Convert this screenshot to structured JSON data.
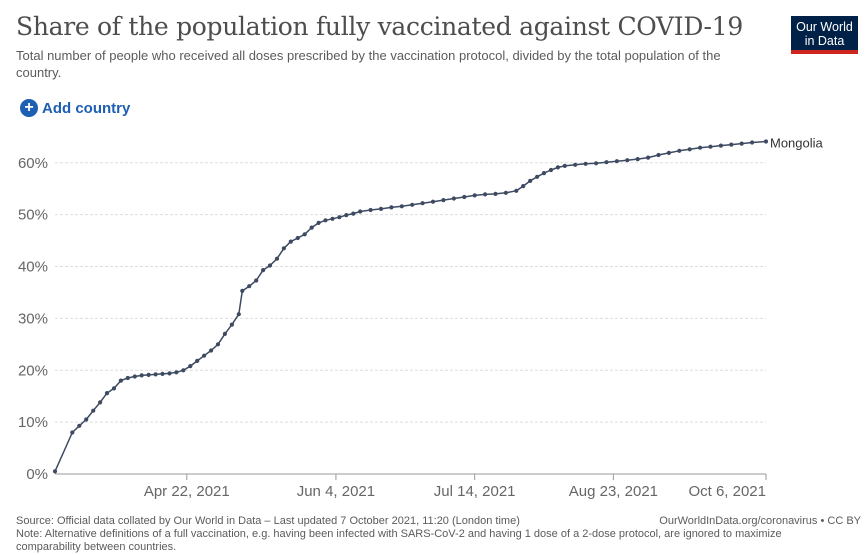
{
  "header": {
    "title": "Share of the population fully vaccinated against COVID-19",
    "subtitle": "Total number of people who received all doses prescribed by the vaccination protocol, divided by the total population of the country."
  },
  "logo": {
    "line1": "Our World",
    "line2": "in Data"
  },
  "controls": {
    "add_country": "Add country"
  },
  "colors": {
    "series": "#3d4a61",
    "grid": "#dddddd",
    "link": "#1d5fb3",
    "logo_bg": "#002147",
    "logo_accent": "#ce261e"
  },
  "chart_data": {
    "type": "line",
    "xlabel": "",
    "ylabel": "",
    "ylim": [
      0,
      64
    ],
    "y_ticks": [
      0,
      10,
      20,
      30,
      40,
      50,
      60
    ],
    "y_tick_labels": [
      "0%",
      "10%",
      "20%",
      "30%",
      "40%",
      "50%",
      "60%"
    ],
    "x_range": [
      "2021-03-15",
      "2021-10-06"
    ],
    "x_ticks": [
      "2021-04-22",
      "2021-06-04",
      "2021-07-14",
      "2021-08-23",
      "2021-10-06"
    ],
    "x_tick_labels": [
      "Apr 22, 2021",
      "Jun 4, 2021",
      "Jul 14, 2021",
      "Aug 23, 2021",
      "Oct 6, 2021"
    ],
    "grid": true,
    "series": [
      {
        "name": "Mongolia",
        "points": [
          [
            "2021-03-15",
            0.5
          ],
          [
            "2021-03-20",
            8.0
          ],
          [
            "2021-03-22",
            9.3
          ],
          [
            "2021-03-24",
            10.5
          ],
          [
            "2021-03-26",
            12.2
          ],
          [
            "2021-03-28",
            13.8
          ],
          [
            "2021-03-30",
            15.6
          ],
          [
            "2021-04-01",
            16.5
          ],
          [
            "2021-04-03",
            18.0
          ],
          [
            "2021-04-05",
            18.5
          ],
          [
            "2021-04-07",
            18.8
          ],
          [
            "2021-04-09",
            19.0
          ],
          [
            "2021-04-11",
            19.1
          ],
          [
            "2021-04-13",
            19.2
          ],
          [
            "2021-04-15",
            19.3
          ],
          [
            "2021-04-17",
            19.4
          ],
          [
            "2021-04-19",
            19.6
          ],
          [
            "2021-04-21",
            20.0
          ],
          [
            "2021-04-23",
            20.8
          ],
          [
            "2021-04-25",
            21.8
          ],
          [
            "2021-04-27",
            22.8
          ],
          [
            "2021-04-29",
            23.8
          ],
          [
            "2021-05-01",
            25.0
          ],
          [
            "2021-05-03",
            27.0
          ],
          [
            "2021-05-05",
            28.8
          ],
          [
            "2021-05-07",
            30.8
          ],
          [
            "2021-05-08",
            35.3
          ],
          [
            "2021-05-10",
            36.2
          ],
          [
            "2021-05-12",
            37.3
          ],
          [
            "2021-05-14",
            39.3
          ],
          [
            "2021-05-16",
            40.2
          ],
          [
            "2021-05-18",
            41.5
          ],
          [
            "2021-05-20",
            43.5
          ],
          [
            "2021-05-22",
            44.8
          ],
          [
            "2021-05-24",
            45.5
          ],
          [
            "2021-05-26",
            46.2
          ],
          [
            "2021-05-28",
            47.5
          ],
          [
            "2021-05-30",
            48.4
          ],
          [
            "2021-06-01",
            48.9
          ],
          [
            "2021-06-03",
            49.2
          ],
          [
            "2021-06-05",
            49.5
          ],
          [
            "2021-06-07",
            49.9
          ],
          [
            "2021-06-09",
            50.2
          ],
          [
            "2021-06-11",
            50.6
          ],
          [
            "2021-06-14",
            50.9
          ],
          [
            "2021-06-17",
            51.1
          ],
          [
            "2021-06-20",
            51.4
          ],
          [
            "2021-06-23",
            51.6
          ],
          [
            "2021-06-26",
            51.9
          ],
          [
            "2021-06-29",
            52.2
          ],
          [
            "2021-07-02",
            52.5
          ],
          [
            "2021-07-05",
            52.8
          ],
          [
            "2021-07-08",
            53.1
          ],
          [
            "2021-07-11",
            53.4
          ],
          [
            "2021-07-14",
            53.7
          ],
          [
            "2021-07-17",
            53.9
          ],
          [
            "2021-07-20",
            54.0
          ],
          [
            "2021-07-23",
            54.2
          ],
          [
            "2021-07-26",
            54.6
          ],
          [
            "2021-07-28",
            55.5
          ],
          [
            "2021-07-30",
            56.5
          ],
          [
            "2021-08-01",
            57.3
          ],
          [
            "2021-08-03",
            58.0
          ],
          [
            "2021-08-05",
            58.6
          ],
          [
            "2021-08-07",
            59.1
          ],
          [
            "2021-08-09",
            59.4
          ],
          [
            "2021-08-12",
            59.6
          ],
          [
            "2021-08-15",
            59.8
          ],
          [
            "2021-08-18",
            59.9
          ],
          [
            "2021-08-21",
            60.1
          ],
          [
            "2021-08-24",
            60.3
          ],
          [
            "2021-08-27",
            60.5
          ],
          [
            "2021-08-30",
            60.7
          ],
          [
            "2021-09-02",
            61.0
          ],
          [
            "2021-09-05",
            61.5
          ],
          [
            "2021-09-08",
            61.9
          ],
          [
            "2021-09-11",
            62.3
          ],
          [
            "2021-09-14",
            62.6
          ],
          [
            "2021-09-17",
            62.9
          ],
          [
            "2021-09-20",
            63.1
          ],
          [
            "2021-09-23",
            63.3
          ],
          [
            "2021-09-26",
            63.5
          ],
          [
            "2021-09-29",
            63.7
          ],
          [
            "2021-10-02",
            63.9
          ],
          [
            "2021-10-06",
            64.1
          ]
        ]
      }
    ]
  },
  "footer": {
    "source": "Source: Official data collated by Our World in Data – Last updated 7 October 2021, 11:20 (London time)",
    "credit": "OurWorldInData.org/coronavirus • CC BY",
    "note": "Note: Alternative definitions of a full vaccination, e.g. having been infected with SARS-CoV-2 and having 1 dose of a 2-dose protocol, are ignored to maximize comparability between countries."
  }
}
